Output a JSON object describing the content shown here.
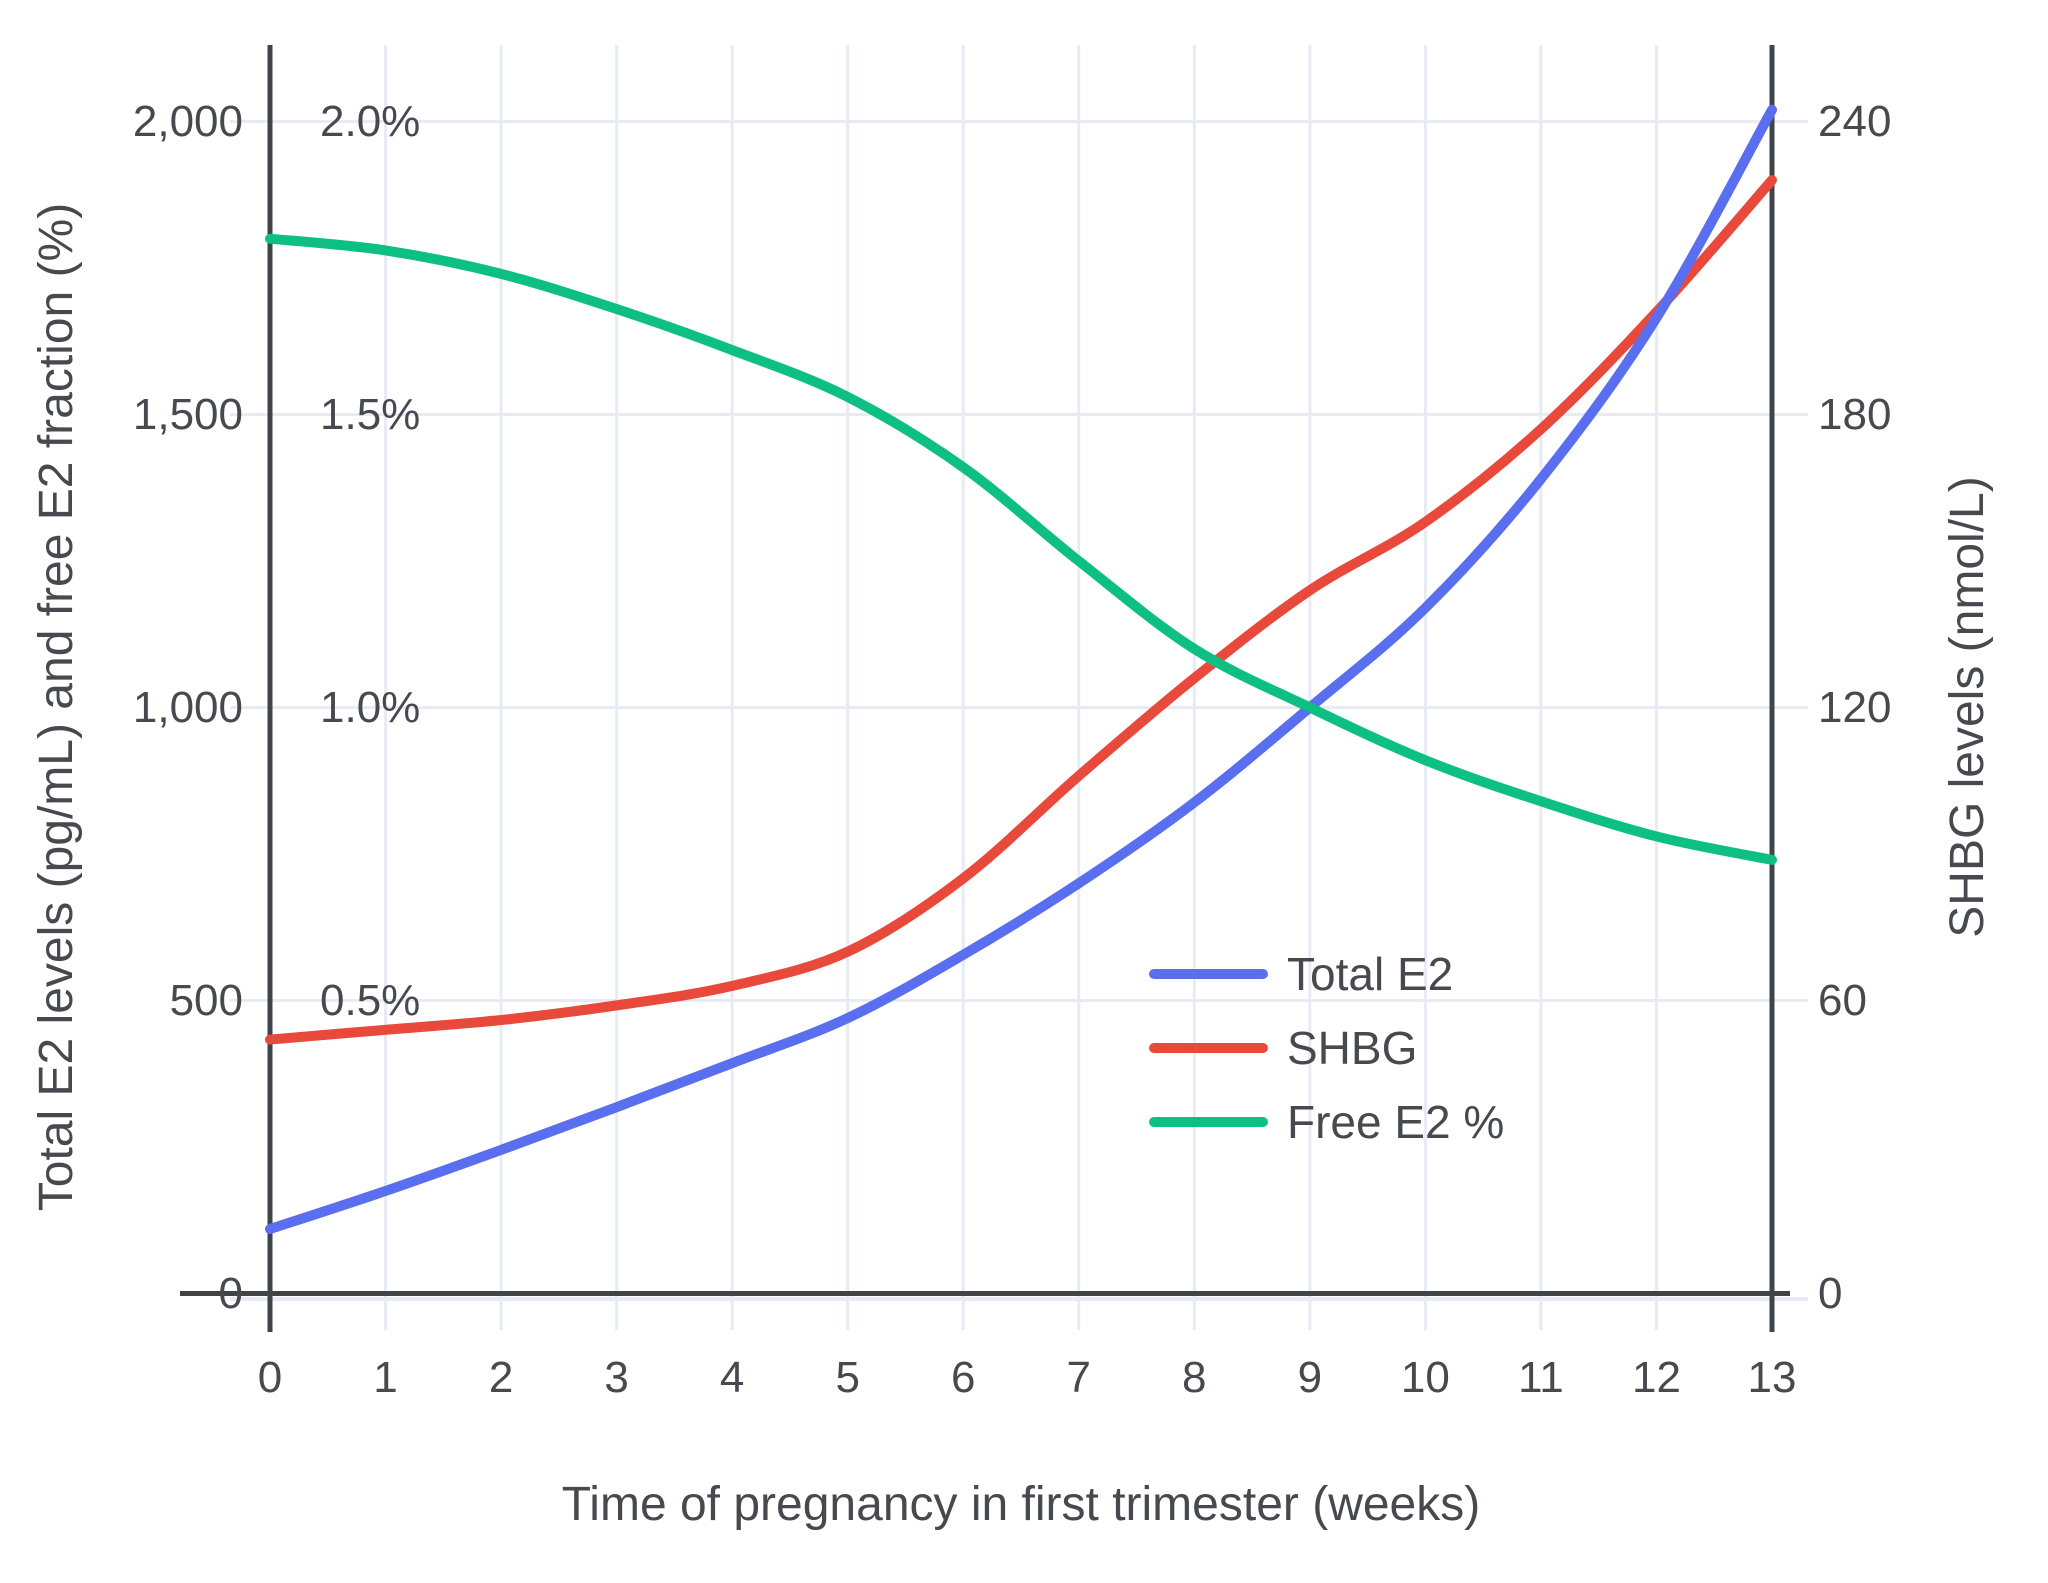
{
  "chart": {
    "colors": {
      "total_e2_line": "#5a6ef0",
      "shbg_line": "#e8493b",
      "free_e2_line": "#0dbf82",
      "gridline": "#e8ebf4",
      "axis_line": "#3f4449",
      "text": "#47494e",
      "background": "#ffffff"
    },
    "y_axis_left": {
      "tick_labels": [
        "2,000",
        "1,500",
        "1,000",
        "500",
        "0"
      ],
      "pct_tick_labels": [
        "2.0%",
        "1.5%",
        "1.0%",
        "0.5%"
      ]
    },
    "y_axis_right": {
      "tick_labels": [
        "240",
        "180",
        "120",
        "60",
        "0"
      ]
    },
    "x_axis": {
      "tick_labels": [
        "0",
        "1",
        "2",
        "3",
        "4",
        "5",
        "6",
        "7",
        "8",
        "9",
        "10",
        "11",
        "12",
        "13"
      ]
    }
  },
  "chart_data": {
    "type": "line",
    "title": "",
    "xlabel": "Time of pregnancy in first trimester (weeks)",
    "ylabel_left": "Total E2 levels (pg/mL) and free E2 fraction (%)",
    "ylabel_right": "SHBG levels (nmol/L)",
    "x": [
      0,
      1,
      2,
      3,
      4,
      5,
      6,
      7,
      8,
      9,
      10,
      11,
      12,
      13
    ],
    "xlim": [
      0,
      13
    ],
    "axes": {
      "left_e2": {
        "label": "Total E2 (pg/mL)",
        "min": 0,
        "max": 2000
      },
      "left_pct": {
        "label": "Free E2 fraction (%)",
        "min": 0,
        "max": 2.0
      },
      "right": {
        "label": "SHBG (nmol/L)",
        "min": 0,
        "max": 240
      }
    },
    "grid": true,
    "legend_position": "lower right",
    "series": [
      {
        "name": "Total E2",
        "axis": "left_e2",
        "unit": "pg/mL",
        "color": "#5a6ef0",
        "values": [
          110,
          175,
          245,
          318,
          393,
          470,
          578,
          700,
          838,
          1000,
          1170,
          1390,
          1665,
          2020
        ]
      },
      {
        "name": "SHBG",
        "axis": "right",
        "unit": "nmol/L",
        "color": "#e8493b",
        "values": [
          52,
          54,
          56,
          59,
          63,
          70,
          85,
          106,
          126,
          144,
          158,
          177,
          201,
          228
        ]
      },
      {
        "name": "Free E2 %",
        "axis": "left_pct",
        "unit": "%",
        "color": "#0dbf82",
        "values": [
          1.8,
          1.78,
          1.74,
          1.68,
          1.61,
          1.53,
          1.41,
          1.25,
          1.1,
          1.0,
          0.91,
          0.84,
          0.78,
          0.74
        ]
      }
    ]
  }
}
